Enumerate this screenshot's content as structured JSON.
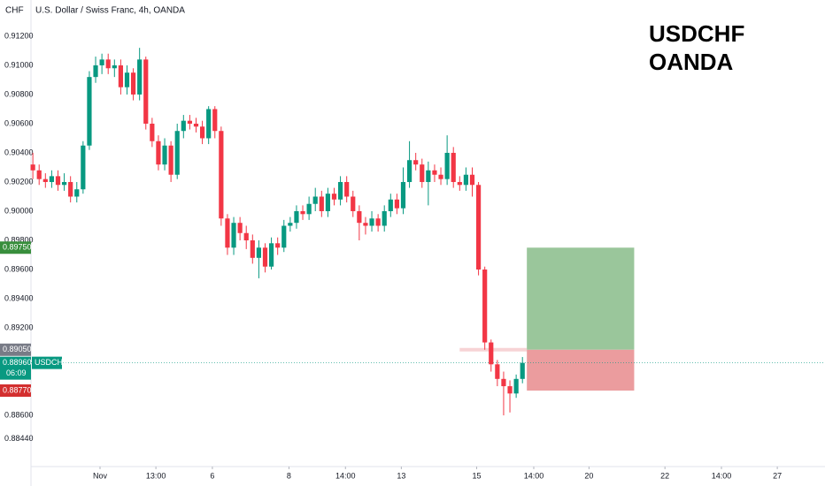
{
  "chart_data": {
    "type": "candlestick",
    "title": "U.S. Dollar / Swiss Franc, 4h, OANDA",
    "currency": "CHF",
    "annotation": [
      "USDCHF",
      "OANDA"
    ],
    "up_color": "#089981",
    "down_color": "#f23645",
    "open": [
      0.9032,
      0.9028,
      0.9022,
      0.902,
      0.9024,
      0.9018,
      0.902,
      0.901,
      0.9015,
      0.9045,
      0.9092,
      0.91,
      0.9104,
      0.9098,
      0.91,
      0.9085,
      0.9095,
      0.908,
      0.9104,
      0.906,
      0.9048,
      0.9032,
      0.9045,
      0.9025,
      0.9055,
      0.9062,
      0.906,
      0.9058,
      0.905,
      0.907,
      0.9055,
      0.8995,
      0.8975,
      0.8992,
      0.8985,
      0.898,
      0.8968,
      0.8975,
      0.8962,
      0.8978,
      0.8975,
      0.899,
      0.8992,
      0.9,
      0.8998,
      0.9005,
      0.901,
      0.9,
      0.9012,
      0.9008,
      0.902,
      0.901,
      0.9,
      0.8992,
      0.899,
      0.8995,
      0.899,
      0.9,
      0.9008,
      0.9002,
      0.902,
      0.9035,
      0.9032,
      0.902,
      0.9028,
      0.9025,
      0.9022,
      0.904,
      0.902,
      0.9018,
      0.9025,
      0.9018,
      0.896,
      0.891,
      0.8895,
      0.8885,
      0.888,
      0.8875,
      0.8885
    ],
    "high": [
      0.904,
      0.9032,
      0.9026,
      0.9028,
      0.9028,
      0.9026,
      0.9024,
      0.902,
      0.9048,
      0.9096,
      0.9106,
      0.9108,
      0.9108,
      0.9104,
      0.9104,
      0.91,
      0.9098,
      0.9112,
      0.9106,
      0.9064,
      0.9052,
      0.905,
      0.9048,
      0.906,
      0.9066,
      0.9066,
      0.9064,
      0.9062,
      0.9072,
      0.9072,
      0.9058,
      0.8998,
      0.8996,
      0.8996,
      0.899,
      0.8984,
      0.898,
      0.8978,
      0.8982,
      0.8982,
      0.8994,
      0.8996,
      0.9004,
      0.9004,
      0.901,
      0.9016,
      0.9014,
      0.9016,
      0.9016,
      0.9024,
      0.9024,
      0.9014,
      0.9004,
      0.8996,
      0.9,
      0.8998,
      0.9004,
      0.9012,
      0.9012,
      0.903,
      0.9048,
      0.904,
      0.9036,
      0.9034,
      0.9032,
      0.903,
      0.9052,
      0.9044,
      0.9024,
      0.903,
      0.903,
      0.902,
      0.8962,
      0.8912,
      0.8898,
      0.889,
      0.8884,
      0.8888,
      0.89
    ],
    "low": [
      0.9022,
      0.9018,
      0.9016,
      0.9016,
      0.9014,
      0.9014,
      0.9006,
      0.9006,
      0.9012,
      0.9042,
      0.9088,
      0.9094,
      0.9094,
      0.9092,
      0.908,
      0.908,
      0.9076,
      0.9076,
      0.9056,
      0.9044,
      0.9028,
      0.9028,
      0.902,
      0.9022,
      0.905,
      0.9056,
      0.9054,
      0.9046,
      0.9046,
      0.905,
      0.899,
      0.897,
      0.897,
      0.898,
      0.8974,
      0.8964,
      0.8954,
      0.8958,
      0.896,
      0.897,
      0.8972,
      0.8986,
      0.8988,
      0.8994,
      0.8994,
      0.9,
      0.8996,
      0.8996,
      0.9004,
      0.9004,
      0.9006,
      0.8996,
      0.898,
      0.8984,
      0.8986,
      0.8986,
      0.8986,
      0.8996,
      0.8998,
      0.8998,
      0.9016,
      0.9028,
      0.9016,
      0.9004,
      0.902,
      0.9018,
      0.9018,
      0.9016,
      0.9014,
      0.9014,
      0.901,
      0.8956,
      0.8905,
      0.889,
      0.888,
      0.886,
      0.8862,
      0.8872,
      0.8882
    ],
    "close": [
      0.9028,
      0.9022,
      0.902,
      0.9024,
      0.9018,
      0.902,
      0.901,
      0.9015,
      0.9045,
      0.9092,
      0.91,
      0.9104,
      0.9098,
      0.91,
      0.9085,
      0.9095,
      0.908,
      0.9104,
      0.906,
      0.9048,
      0.9032,
      0.9045,
      0.9025,
      0.9055,
      0.9062,
      0.906,
      0.9058,
      0.905,
      0.907,
      0.9055,
      0.8995,
      0.8975,
      0.8992,
      0.8985,
      0.898,
      0.8968,
      0.8975,
      0.8962,
      0.8978,
      0.8975,
      0.899,
      0.8992,
      0.9,
      0.8998,
      0.9005,
      0.901,
      0.9,
      0.9012,
      0.9008,
      0.902,
      0.901,
      0.9,
      0.8992,
      0.899,
      0.8995,
      0.899,
      0.9,
      0.9008,
      0.9002,
      0.902,
      0.9035,
      0.9032,
      0.902,
      0.9028,
      0.9025,
      0.9022,
      0.904,
      0.902,
      0.9018,
      0.9025,
      0.9018,
      0.896,
      0.891,
      0.8895,
      0.8885,
      0.888,
      0.8875,
      0.8885,
      0.8896
    ],
    "xlim": [
      -0.3,
      126.2
    ],
    "ylim": [
      0.88249,
      0.91448
    ],
    "yticks": [
      {
        "value": 0.912,
        "label": "0.91200"
      },
      {
        "value": 0.91,
        "label": "0.91000"
      },
      {
        "value": 0.908,
        "label": "0.90800"
      },
      {
        "value": 0.906,
        "label": "0.90600"
      },
      {
        "value": 0.904,
        "label": "0.90400"
      },
      {
        "value": 0.902,
        "label": "0.90200"
      },
      {
        "value": 0.9,
        "label": "0.90000"
      },
      {
        "value": 0.898,
        "label": "0.89800"
      },
      {
        "value": 0.896,
        "label": "0.89600"
      },
      {
        "value": 0.894,
        "label": "0.89400"
      },
      {
        "value": 0.892,
        "label": "0.89200"
      },
      {
        "value": 0.886,
        "label": "0.88600"
      },
      {
        "value": 0.8844,
        "label": "0.88440"
      }
    ],
    "xticks": [
      {
        "value": 10.7,
        "label": "Nov"
      },
      {
        "value": 19.6,
        "label": "13:00"
      },
      {
        "value": 28.6,
        "label": "6"
      },
      {
        "value": 40.8,
        "label": "8"
      },
      {
        "value": 49.8,
        "label": "14:00"
      },
      {
        "value": 58.7,
        "label": "13"
      },
      {
        "value": 70.7,
        "label": "15"
      },
      {
        "value": 79.8,
        "label": "14:00"
      },
      {
        "value": 88.6,
        "label": "20"
      },
      {
        "value": 100.7,
        "label": "22"
      },
      {
        "value": 109.7,
        "label": "14:00"
      },
      {
        "value": 118.6,
        "label": "27"
      }
    ],
    "position": {
      "entry": 0.8905,
      "target": 0.8975,
      "stop": 0.8877,
      "start": 78.7,
      "end": 95.8,
      "line_start": 68,
      "profit_color": "#9ac69b",
      "loss_color": "#eb9c9e",
      "line_color": "#f7d3d5"
    },
    "price_badges": [
      {
        "value": 0.8975,
        "label": "0.89750",
        "color": "#388e3c"
      },
      {
        "value": 0.8905,
        "label": "0.89050",
        "color": "#787b86"
      },
      {
        "value": 0.8877,
        "label": "0.88770",
        "color": "#d32f2f"
      }
    ],
    "last_price": {
      "value": 0.8896,
      "label": "0.88960",
      "symbol": "USDCHF",
      "countdown": "06:09",
      "color": "#089981"
    }
  }
}
